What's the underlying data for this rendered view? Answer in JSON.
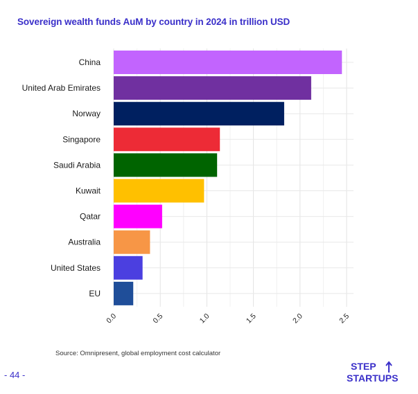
{
  "page": {
    "source": "Source: Omnipresent, global employment cost calculator",
    "page_number": "- 44 -",
    "logo_line1": "STEP",
    "logo_line2": "STARTUPS"
  },
  "chart_data": {
    "type": "bar",
    "orientation": "horizontal",
    "title": "Sovereign wealth funds AuM by country in 2024 in trillion USD",
    "xlabel": "",
    "ylabel": "",
    "categories": [
      "China",
      "United Arab Emirates",
      "Norway",
      "Singapore",
      "Saudi Arabia",
      "Kuwait",
      "Qatar",
      "Australia",
      "United States",
      "EU"
    ],
    "values": [
      2.45,
      2.12,
      1.83,
      1.14,
      1.11,
      0.97,
      0.52,
      0.39,
      0.31,
      0.21
    ],
    "colors": [
      "#c264fe",
      "#7030a0",
      "#002060",
      "#ed2b36",
      "#006400",
      "#ffc000",
      "#ff00ff",
      "#f79646",
      "#4b3fe0",
      "#1f4e99"
    ],
    "xlim": [
      0,
      2.5
    ],
    "xticks": [
      "0.0",
      "0.5",
      "1.0",
      "1.5",
      "2.0",
      "2.5"
    ],
    "grid": true
  }
}
